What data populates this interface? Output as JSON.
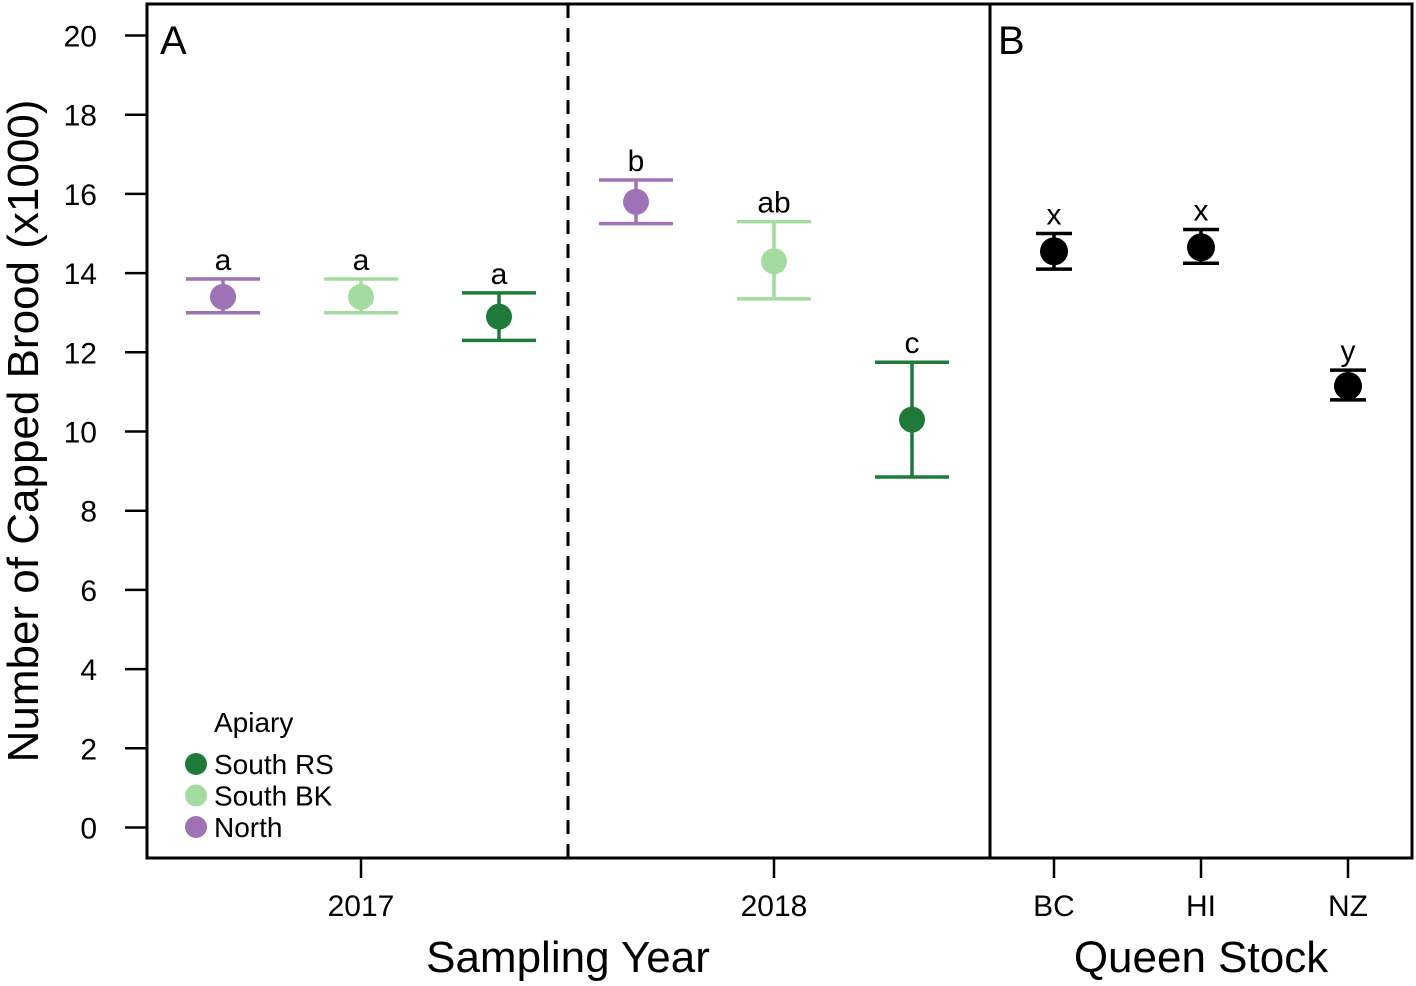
{
  "chart_data": {
    "type": "scatter",
    "ylabel": "Number of Capped Brood (x1000)",
    "ylim": [
      0,
      20
    ],
    "yticks": [
      0,
      2,
      4,
      6,
      8,
      10,
      12,
      14,
      16,
      18,
      20
    ],
    "colors": {
      "North": "#9e72b4",
      "South BK": "#a3dba0",
      "South RS": "#1f7a3a",
      "Queen": "#000000",
      "Frame": "#000000"
    },
    "panels": [
      {
        "letter": "A",
        "xlabel": "Sampling Year",
        "categories": [
          "2017",
          "2018"
        ],
        "legend": {
          "title": "Apiary",
          "position": "bottom-left",
          "entries": [
            "South RS",
            "South BK",
            "North"
          ]
        },
        "points": [
          {
            "category": "2017",
            "group": "North",
            "mean": 13.4,
            "lower": 13.0,
            "upper": 13.85,
            "label": "a"
          },
          {
            "category": "2017",
            "group": "South BK",
            "mean": 13.4,
            "lower": 13.0,
            "upper": 13.85,
            "label": "a"
          },
          {
            "category": "2017",
            "group": "South RS",
            "mean": 12.9,
            "lower": 12.3,
            "upper": 13.5,
            "label": "a"
          },
          {
            "category": "2018",
            "group": "North",
            "mean": 15.8,
            "lower": 15.25,
            "upper": 16.35,
            "label": "b"
          },
          {
            "category": "2018",
            "group": "South BK",
            "mean": 14.3,
            "lower": 13.35,
            "upper": 15.3,
            "label": "ab"
          },
          {
            "category": "2018",
            "group": "South RS",
            "mean": 10.3,
            "lower": 8.85,
            "upper": 11.75,
            "label": "c"
          }
        ]
      },
      {
        "letter": "B",
        "xlabel": "Queen Stock",
        "categories": [
          "BC",
          "HI",
          "NZ"
        ],
        "points": [
          {
            "category": "BC",
            "mean": 14.55,
            "lower": 14.1,
            "upper": 15.0,
            "label": "x"
          },
          {
            "category": "HI",
            "mean": 14.65,
            "lower": 14.25,
            "upper": 15.1,
            "label": "x"
          },
          {
            "category": "NZ",
            "mean": 11.15,
            "lower": 10.8,
            "upper": 11.55,
            "label": "y"
          }
        ]
      }
    ]
  }
}
